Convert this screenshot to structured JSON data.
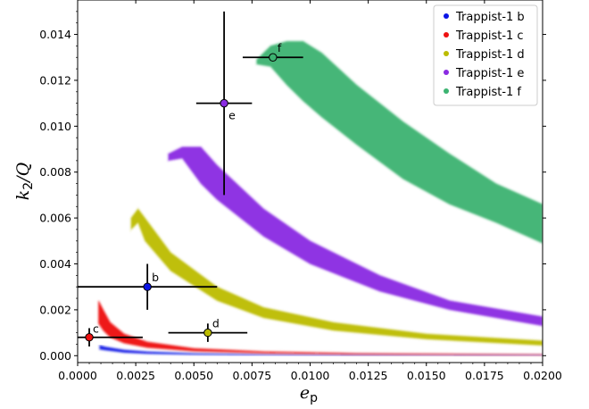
{
  "chart_data": {
    "type": "scatter",
    "xlabel": "e",
    "xlabel_sub": "p",
    "ylabel": "k",
    "ylabel_sub": "2",
    "ylabel_tail": "/Q",
    "xlim": [
      0.0,
      0.02
    ],
    "ylim": [
      -0.0003,
      0.0155
    ],
    "x_ticks": [
      "0.0000",
      "0.0025",
      "0.0050",
      "0.0075",
      "0.0100",
      "0.0125",
      "0.0150",
      "0.0175",
      "0.0200"
    ],
    "y_ticks": [
      "0.000",
      "0.002",
      "0.004",
      "0.006",
      "0.008",
      "0.010",
      "0.012",
      "0.014"
    ],
    "legend_position": "top-right",
    "grid": false,
    "series": [
      {
        "name": "Trappist-1 b",
        "color": "#0a14e6",
        "label": "b",
        "band": {
          "upper": [
            [
              0.00095,
              0.00045
            ],
            [
              0.0012,
              0.00038
            ],
            [
              0.002,
              0.00025
            ],
            [
              0.003,
              0.00017
            ],
            [
              0.005,
              0.0001
            ],
            [
              0.008,
              6e-05
            ],
            [
              0.012,
              4e-05
            ],
            [
              0.02,
              2e-05
            ]
          ],
          "lower": [
            [
              0.00095,
              0.00028
            ],
            [
              0.0012,
              0.00024
            ],
            [
              0.002,
              0.00014
            ],
            [
              0.003,
              9e-05
            ],
            [
              0.005,
              5e-05
            ],
            [
              0.008,
              3e-05
            ],
            [
              0.012,
              2e-05
            ],
            [
              0.02,
              1e-05
            ]
          ]
        },
        "point": {
          "x": 0.003,
          "y": 0.003,
          "xerr": 0.003,
          "yerr": 0.001
        }
      },
      {
        "name": "Trappist-1 c",
        "color": "#ee1111",
        "label": "c",
        "band": {
          "upper": [
            [
              0.0009,
              0.0024
            ],
            [
              0.0011,
              0.002
            ],
            [
              0.0014,
              0.00145
            ],
            [
              0.002,
              0.00095
            ],
            [
              0.003,
              0.0006
            ],
            [
              0.005,
              0.00032
            ],
            [
              0.008,
              0.00018
            ],
            [
              0.012,
              0.0001
            ],
            [
              0.02,
              5e-05
            ]
          ],
          "lower": [
            [
              0.0009,
              0.0014
            ],
            [
              0.0011,
              0.0011
            ],
            [
              0.0014,
              0.0008
            ],
            [
              0.002,
              0.00055
            ],
            [
              0.003,
              0.00035
            ],
            [
              0.005,
              0.0002
            ],
            [
              0.008,
              0.00011
            ],
            [
              0.012,
              6e-05
            ],
            [
              0.02,
              3e-05
            ]
          ]
        },
        "point": {
          "x": 0.0005,
          "y": 0.0008,
          "xerr": 0.0023,
          "yerr": 0.0004
        }
      },
      {
        "name": "Trappist-1 d",
        "color": "#bcbc00",
        "label": "d",
        "band": {
          "upper": [
            [
              0.0023,
              0.006
            ],
            [
              0.0026,
              0.0064
            ],
            [
              0.0029,
              0.006
            ],
            [
              0.004,
              0.0045
            ],
            [
              0.006,
              0.003
            ],
            [
              0.008,
              0.0021
            ],
            [
              0.011,
              0.00145
            ],
            [
              0.015,
              0.00095
            ],
            [
              0.02,
              0.00065
            ]
          ],
          "lower": [
            [
              0.0023,
              0.0055
            ],
            [
              0.0026,
              0.0058
            ],
            [
              0.0029,
              0.005
            ],
            [
              0.004,
              0.0037
            ],
            [
              0.006,
              0.0024
            ],
            [
              0.008,
              0.00165
            ],
            [
              0.011,
              0.0011
            ],
            [
              0.015,
              0.00072
            ],
            [
              0.02,
              0.00045
            ]
          ]
        },
        "point": {
          "x": 0.0056,
          "y": 0.001,
          "xerr": 0.0017,
          "yerr": 0.0004
        }
      },
      {
        "name": "Trappist-1 e",
        "color": "#8a2be2",
        "label": "e",
        "band": {
          "upper": [
            [
              0.0039,
              0.0088
            ],
            [
              0.0045,
              0.0091
            ],
            [
              0.0053,
              0.0091
            ],
            [
              0.006,
              0.0083
            ],
            [
              0.008,
              0.0064
            ],
            [
              0.01,
              0.005
            ],
            [
              0.013,
              0.0035
            ],
            [
              0.016,
              0.0024
            ],
            [
              0.02,
              0.0017
            ]
          ],
          "lower": [
            [
              0.0039,
              0.0085
            ],
            [
              0.0045,
              0.0086
            ],
            [
              0.0053,
              0.0075
            ],
            [
              0.006,
              0.0068
            ],
            [
              0.008,
              0.0052
            ],
            [
              0.01,
              0.004
            ],
            [
              0.013,
              0.0028
            ],
            [
              0.016,
              0.002
            ],
            [
              0.02,
              0.0013
            ]
          ]
        },
        "point": {
          "x": 0.0063,
          "y": 0.011,
          "xerr": 0.0012,
          "yerr": 0.004
        }
      },
      {
        "name": "Trappist-1 f",
        "color": "#3cb371",
        "label": "f",
        "band": {
          "upper": [
            [
              0.0077,
              0.0129
            ],
            [
              0.0083,
              0.0135
            ],
            [
              0.009,
              0.0137
            ],
            [
              0.0097,
              0.0137
            ],
            [
              0.0105,
              0.0132
            ],
            [
              0.012,
              0.0118
            ],
            [
              0.014,
              0.0102
            ],
            [
              0.016,
              0.0088
            ],
            [
              0.018,
              0.0075
            ],
            [
              0.02,
              0.0066
            ]
          ],
          "lower": [
            [
              0.0077,
              0.0127
            ],
            [
              0.0083,
              0.0126
            ],
            [
              0.009,
              0.0118
            ],
            [
              0.0097,
              0.0111
            ],
            [
              0.0105,
              0.0104
            ],
            [
              0.012,
              0.0092
            ],
            [
              0.014,
              0.0077
            ],
            [
              0.016,
              0.0066
            ],
            [
              0.018,
              0.0058
            ],
            [
              0.02,
              0.0049
            ]
          ]
        },
        "point": {
          "x": 0.0084,
          "y": 0.013,
          "xerr": 0.0013,
          "yerr": 0.0
        }
      }
    ]
  }
}
